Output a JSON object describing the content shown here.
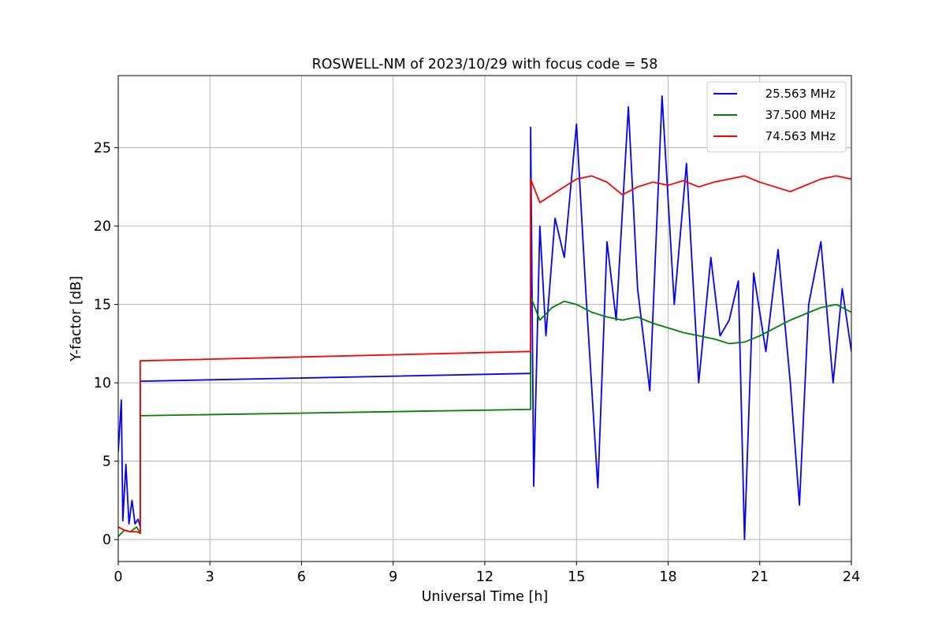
{
  "chart_data": {
    "type": "line",
    "title": "ROSWELL-NM of 2023/10/29 with focus code = 58",
    "xlabel": "Universal Time [h]",
    "ylabel": "Y-factor [dB]",
    "xlim": [
      0,
      24
    ],
    "ylim": [
      -1.4,
      29.6
    ],
    "xticks": [
      0,
      3,
      6,
      9,
      12,
      15,
      18,
      21,
      24
    ],
    "yticks": [
      0,
      5,
      10,
      15,
      20,
      25
    ],
    "xtick_labels": [
      "0",
      "3",
      "6",
      "9",
      "12",
      "15",
      "18",
      "21",
      "24"
    ],
    "ytick_labels": [
      "0",
      "5",
      "10",
      "15",
      "20",
      "25"
    ],
    "grid": true,
    "legend_position": "top-right",
    "series": [
      {
        "name": "25.563 MHz",
        "color": "#0000ff",
        "points": [
          [
            0.0,
            5.6
          ],
          [
            0.1,
            8.9
          ],
          [
            0.15,
            1.2
          ],
          [
            0.25,
            4.8
          ],
          [
            0.35,
            1.0
          ],
          [
            0.45,
            2.5
          ],
          [
            0.55,
            1.0
          ],
          [
            0.65,
            1.3
          ],
          [
            0.72,
            0.8
          ],
          [
            0.72,
            10.1
          ],
          [
            13.5,
            10.6
          ],
          [
            13.5,
            26.3
          ],
          [
            13.6,
            3.4
          ],
          [
            13.8,
            20.0
          ],
          [
            14.0,
            13.0
          ],
          [
            14.3,
            20.5
          ],
          [
            14.6,
            18.0
          ],
          [
            15.0,
            26.5
          ],
          [
            15.3,
            16.0
          ],
          [
            15.7,
            3.3
          ],
          [
            16.0,
            19.0
          ],
          [
            16.3,
            14.0
          ],
          [
            16.7,
            27.6
          ],
          [
            17.0,
            16.0
          ],
          [
            17.4,
            9.5
          ],
          [
            17.8,
            28.3
          ],
          [
            18.2,
            15.0
          ],
          [
            18.6,
            24.0
          ],
          [
            19.0,
            10.0
          ],
          [
            19.4,
            18.0
          ],
          [
            19.7,
            13.0
          ],
          [
            20.0,
            14.0
          ],
          [
            20.3,
            16.5
          ],
          [
            20.5,
            0.0
          ],
          [
            20.8,
            17.0
          ],
          [
            21.2,
            12.0
          ],
          [
            21.6,
            18.5
          ],
          [
            22.0,
            10.0
          ],
          [
            22.3,
            2.2
          ],
          [
            22.6,
            15.0
          ],
          [
            23.0,
            19.0
          ],
          [
            23.4,
            10.0
          ],
          [
            23.7,
            16.0
          ],
          [
            24.0,
            12.0
          ]
        ]
      },
      {
        "name": "37.500 MHz",
        "color": "#008000",
        "points": [
          [
            0.0,
            0.2
          ],
          [
            0.2,
            0.6
          ],
          [
            0.4,
            0.5
          ],
          [
            0.6,
            0.8
          ],
          [
            0.72,
            0.4
          ],
          [
            0.72,
            7.9
          ],
          [
            13.5,
            8.3
          ],
          [
            13.5,
            15.5
          ],
          [
            13.8,
            14.0
          ],
          [
            14.2,
            14.8
          ],
          [
            14.6,
            15.2
          ],
          [
            15.0,
            15.0
          ],
          [
            15.5,
            14.5
          ],
          [
            16.0,
            14.2
          ],
          [
            16.5,
            14.0
          ],
          [
            17.0,
            14.2
          ],
          [
            17.5,
            13.8
          ],
          [
            18.0,
            13.5
          ],
          [
            18.5,
            13.2
          ],
          [
            19.0,
            13.0
          ],
          [
            19.5,
            12.8
          ],
          [
            20.0,
            12.5
          ],
          [
            20.5,
            12.6
          ],
          [
            21.0,
            13.0
          ],
          [
            21.5,
            13.5
          ],
          [
            22.0,
            14.0
          ],
          [
            22.5,
            14.4
          ],
          [
            23.0,
            14.8
          ],
          [
            23.5,
            15.0
          ],
          [
            24.0,
            14.5
          ]
        ]
      },
      {
        "name": "74.563 MHz",
        "color": "#ff0000",
        "points": [
          [
            0.0,
            0.8
          ],
          [
            0.2,
            0.6
          ],
          [
            0.4,
            0.5
          ],
          [
            0.6,
            0.5
          ],
          [
            0.72,
            0.4
          ],
          [
            0.72,
            11.4
          ],
          [
            13.5,
            12.0
          ],
          [
            13.5,
            23.0
          ],
          [
            13.8,
            21.5
          ],
          [
            14.2,
            22.0
          ],
          [
            14.6,
            22.5
          ],
          [
            15.0,
            23.0
          ],
          [
            15.5,
            23.2
          ],
          [
            16.0,
            22.8
          ],
          [
            16.5,
            22.0
          ],
          [
            17.0,
            22.5
          ],
          [
            17.5,
            22.8
          ],
          [
            18.0,
            22.6
          ],
          [
            18.5,
            22.9
          ],
          [
            19.0,
            22.5
          ],
          [
            19.5,
            22.8
          ],
          [
            20.0,
            23.0
          ],
          [
            20.5,
            23.2
          ],
          [
            21.0,
            22.8
          ],
          [
            21.5,
            22.5
          ],
          [
            22.0,
            22.2
          ],
          [
            22.5,
            22.6
          ],
          [
            23.0,
            23.0
          ],
          [
            23.5,
            23.2
          ],
          [
            24.0,
            23.0
          ]
        ]
      }
    ]
  }
}
